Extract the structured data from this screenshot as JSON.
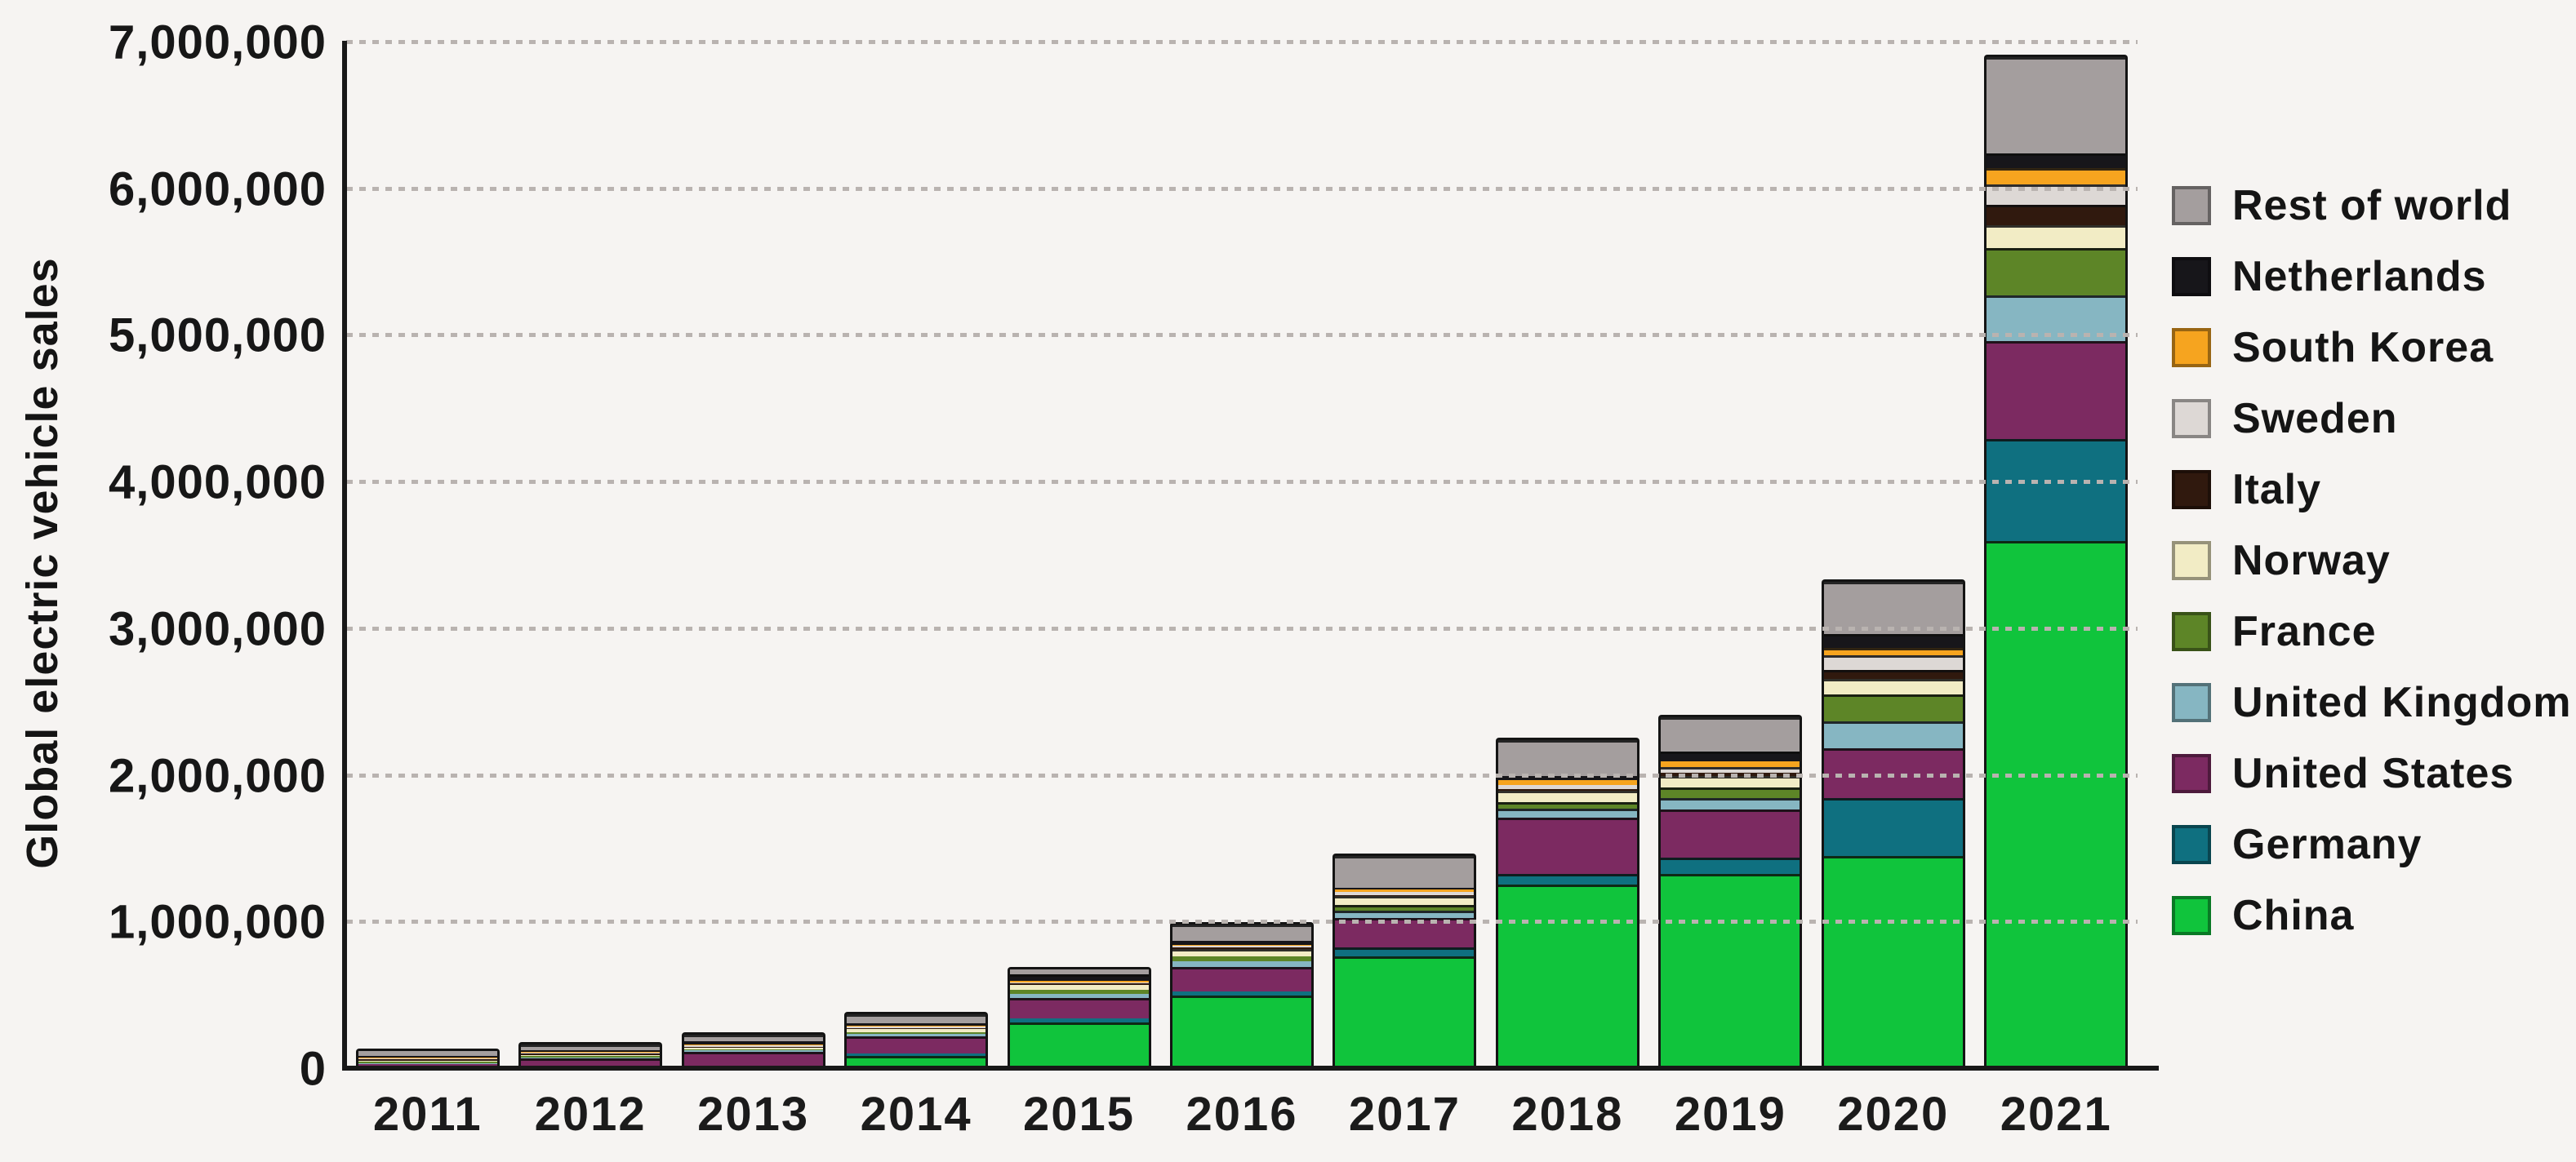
{
  "page": {
    "background_color": "#f6f4f2",
    "axis_color": "#181818",
    "gridline_color": "#b9b3b0",
    "text_color": "#171717"
  },
  "chart_data": {
    "type": "bar",
    "stacked": true,
    "title": "",
    "xlabel": "",
    "ylabel": "Global electric vehicle sales",
    "ylim": [
      0,
      7000000
    ],
    "yticks": [
      0,
      1000000,
      2000000,
      3000000,
      4000000,
      5000000,
      6000000,
      7000000
    ],
    "ytick_labels": [
      "0",
      "1,000,000",
      "2,000,000",
      "3,000,000",
      "4,000,000",
      "5,000,000",
      "6,000,000",
      "7,000,000"
    ],
    "grid": "horizontal dotted gridlines at each 1,000,000",
    "legend_position": "right",
    "categories": [
      "2011",
      "2012",
      "2013",
      "2014",
      "2015",
      "2016",
      "2017",
      "2018",
      "2019",
      "2020",
      "2021"
    ],
    "stack_order": "bottom-to-top",
    "series": [
      {
        "name": "China",
        "color": "#10c43c",
        "values": [
          5000,
          12000,
          15000,
          90000,
          320000,
          500000,
          770000,
          1260000,
          1330000,
          1450000,
          3600000
        ]
      },
      {
        "name": "Germany",
        "color": "#0f7080",
        "values": [
          2000,
          3000,
          8000,
          14000,
          25000,
          28000,
          58000,
          72000,
          112000,
          398000,
          695000
        ]
      },
      {
        "name": "United States",
        "color": "#7c2a61",
        "values": [
          18000,
          53000,
          96000,
          119000,
          140000,
          170000,
          200000,
          380000,
          330000,
          340000,
          670000
        ]
      },
      {
        "name": "United Kingdom",
        "color": "#86b6c2",
        "values": [
          1000,
          2000,
          4000,
          16000,
          29000,
          38000,
          50000,
          62000,
          76000,
          180000,
          310000
        ]
      },
      {
        "name": "France",
        "color": "#5d8527",
        "values": [
          3000,
          6000,
          9000,
          13000,
          28000,
          33000,
          40000,
          48000,
          70000,
          186000,
          322000
        ]
      },
      {
        "name": "Norway",
        "color": "#f2ecc5",
        "values": [
          2000,
          4000,
          8000,
          20000,
          34000,
          50000,
          62000,
          75000,
          82000,
          108000,
          155000
        ]
      },
      {
        "name": "Italy",
        "color": "#30190e",
        "values": [
          1000,
          1000,
          2000,
          2000,
          4000,
          4000,
          6000,
          11000,
          18000,
          62000,
          142000
        ]
      },
      {
        "name": "Sweden",
        "color": "#ddd8d5",
        "values": [
          1000,
          1000,
          2000,
          5000,
          9000,
          14000,
          20000,
          30000,
          42000,
          96000,
          140000
        ]
      },
      {
        "name": "South Korea",
        "color": "#f6a41f",
        "values": [
          1000,
          1000,
          1000,
          2000,
          4000,
          6000,
          15000,
          34000,
          36000,
          54000,
          112000
        ]
      },
      {
        "name": "Netherlands",
        "color": "#17161a",
        "values": [
          1000,
          6000,
          23000,
          15000,
          44000,
          23000,
          12000,
          26000,
          68000,
          90000,
          100000
        ]
      },
      {
        "name": "Rest of world",
        "color": "#a49e9e",
        "values": [
          35000,
          41000,
          42000,
          64000,
          33000,
          114000,
          217000,
          242000,
          236000,
          356000,
          654000
        ]
      }
    ],
    "legend_items_top_to_bottom": [
      "Rest of world",
      "Netherlands",
      "South Korea",
      "Sweden",
      "Italy",
      "Norway",
      "France",
      "United Kingdom",
      "United States",
      "Germany",
      "China"
    ]
  }
}
